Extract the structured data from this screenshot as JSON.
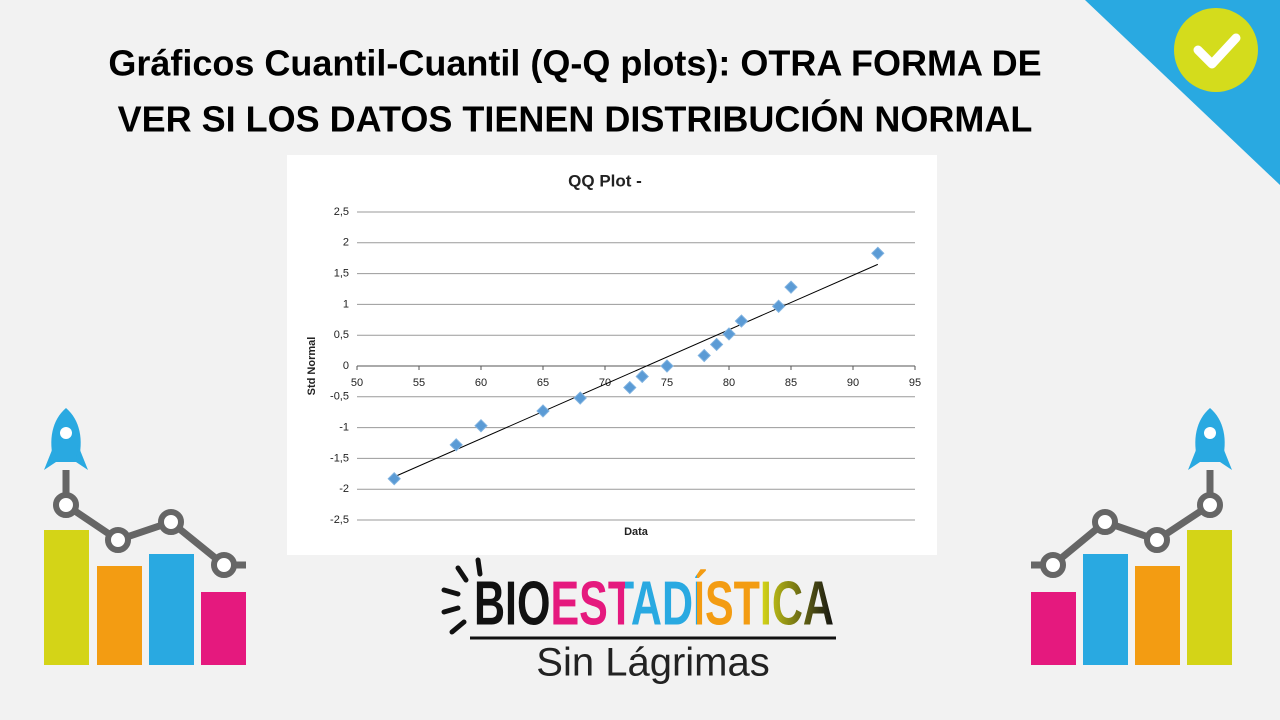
{
  "header": {
    "title_lines": [
      "Gráficos Cuantil-Cuantil (Q-Q plots): OTRA FORMA DE",
      "VER SI LOS DATOS TIENEN DISTRIBUCIÓN NORMAL"
    ]
  },
  "logo": {
    "name": "BIOESTADÍSTICA",
    "tagline": "Sin Lágrimas"
  },
  "chart_data": {
    "type": "scatter",
    "title": "QQ Plot -",
    "x_label": "Data",
    "y_label": "Std Normal",
    "series": [
      {
        "color": "#5b9bd5",
        "x": [
          53,
          58,
          60,
          65,
          68,
          72,
          73,
          75,
          78,
          79,
          80,
          81,
          84,
          85,
          92
        ],
        "values": [
          -1.83,
          -1.28,
          -0.97,
          -0.73,
          -0.52,
          -0.35,
          -0.17,
          0,
          0.17,
          0.35,
          0.52,
          0.73,
          0.97,
          1.28,
          1.83
        ]
      }
    ],
    "trendline": {
      "color": "#000000",
      "x": [
        53,
        92
      ],
      "values": [
        -1.8,
        1.65
      ]
    },
    "xlim": [
      50,
      95
    ],
    "xticks": [
      50,
      55,
      60,
      65,
      70,
      75,
      80,
      85,
      90,
      95
    ],
    "ylim": [
      -2.5,
      2.5
    ],
    "yticks": [
      {
        "value": -2.5,
        "label": "-2,5"
      },
      -2,
      {
        "value": -1.5,
        "label": "-1,5"
      },
      -1,
      {
        "value": -0.5,
        "label": "-0,5"
      },
      0,
      {
        "value": 0.5,
        "label": "0,5"
      },
      1,
      {
        "value": 1.5,
        "label": "1,5"
      },
      2,
      {
        "value": 2.5,
        "label": "2,5"
      }
    ],
    "grid": true
  }
}
